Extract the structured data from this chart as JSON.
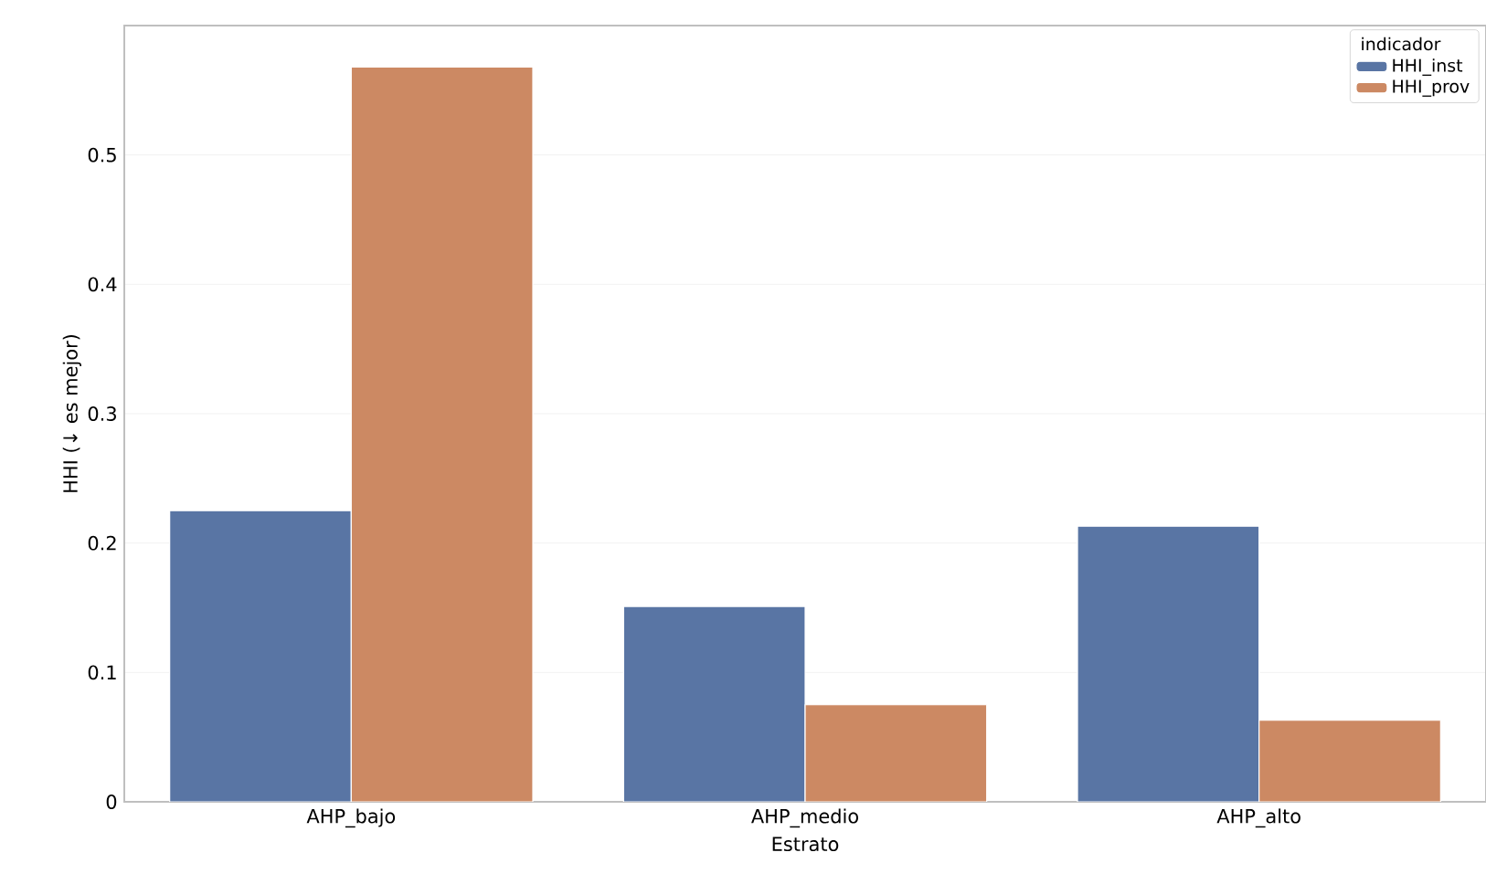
{
  "chart_data": {
    "type": "bar",
    "xlabel": "Estrato",
    "ylabel": "HHI (↓ es mejor)",
    "legend_title": "indicador",
    "categories": [
      "AHP_bajo",
      "AHP_medio",
      "AHP_alto"
    ],
    "series": [
      {
        "name": "HHI_inst",
        "color": "#5975a4",
        "values": [
          0.225,
          0.151,
          0.213
        ]
      },
      {
        "name": "HHI_prov",
        "color": "#cc8963",
        "values": [
          0.568,
          0.075,
          0.063
        ]
      }
    ],
    "ylim": [
      0,
      0.6
    ],
    "yticks": [
      0,
      0.1,
      0.2,
      0.3,
      0.4,
      0.5
    ],
    "grid": "y",
    "legend": "top right"
  }
}
